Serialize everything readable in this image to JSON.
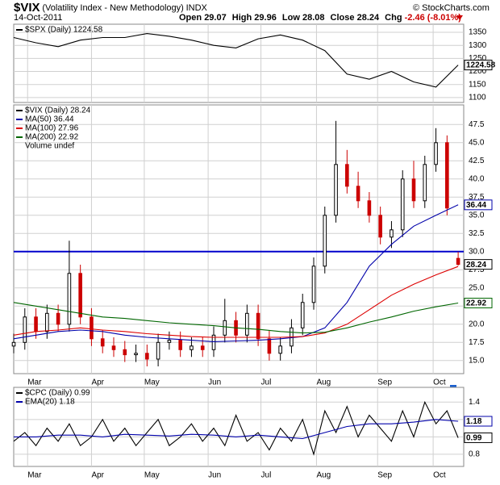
{
  "header": {
    "symbol": "$VIX",
    "description": "(Volatility Index - New Methodology)",
    "exchange": "INDX",
    "date": "14-Oct-2011",
    "open_label": "Open",
    "open": 29.07,
    "high_label": "High",
    "high": 29.96,
    "low_label": "Low",
    "low": 28.08,
    "close_label": "Close",
    "close": 28.24,
    "change_label": "Chg",
    "change": -2.46,
    "change_percent": "(-8.01%)",
    "copyright": "© StockCharts.com"
  },
  "chart_data": [
    {
      "type": "line",
      "xlim": [
        0,
        162
      ],
      "xticks": [
        5,
        28,
        47,
        70,
        89,
        109,
        131,
        151
      ],
      "ylim": [
        1081,
        1381
      ],
      "yticks": [
        1100,
        1150,
        1200,
        1250,
        1300,
        1350
      ],
      "grid": true,
      "series": [
        {
          "name": "$SPX (Daily) 1224.58",
          "color": "#000000",
          "last_box": true,
          "x": [
            0,
            8,
            16,
            24,
            32,
            40,
            48,
            56,
            64,
            72,
            80,
            88,
            96,
            104,
            112,
            120,
            128,
            136,
            144,
            152,
            160
          ],
          "values": [
            1330,
            1310,
            1295,
            1320,
            1330,
            1330,
            1345,
            1335,
            1320,
            1300,
            1290,
            1325,
            1340,
            1320,
            1280,
            1190,
            1170,
            1200,
            1160,
            1140,
            1224.58
          ]
        }
      ]
    },
    {
      "type": "candlestick",
      "xlim": [
        0,
        162
      ],
      "xticks": [
        {
          "value": 5,
          "label": "Mar"
        },
        {
          "value": 28,
          "label": "Apr"
        },
        {
          "value": 47,
          "label": "May"
        },
        {
          "value": 70,
          "label": "Jun"
        },
        {
          "value": 89,
          "label": "Jul"
        },
        {
          "value": 109,
          "label": "Aug"
        },
        {
          "value": 131,
          "label": "Sep"
        },
        {
          "value": 151,
          "label": "Oct"
        }
      ],
      "ylim": [
        13.2,
        50.2
      ],
      "yticks": [
        {
          "value": 15,
          "label": "15.0"
        },
        {
          "value": 17.5,
          "label": "17.5"
        },
        {
          "value": 20,
          "label": "20.0"
        },
        {
          "value": 22.5,
          "label": "22.5"
        },
        {
          "value": 25,
          "label": "25.0"
        },
        {
          "value": 27.5,
          "label": "27.5"
        },
        {
          "value": 30,
          "label": "30.0"
        },
        {
          "value": 32.5,
          "label": "32.5"
        },
        {
          "value": 35,
          "label": "35.0"
        },
        {
          "value": 37.5,
          "label": "37.5"
        },
        {
          "value": 40,
          "label": "40.0"
        },
        {
          "value": 42.5,
          "label": "42.5"
        },
        {
          "value": 45,
          "label": "45.0"
        },
        {
          "value": 47.5,
          "label": "47.5"
        }
      ],
      "grid": true,
      "hline": 30,
      "hline_color": "#0000cc",
      "volume_note": "Volume undef",
      "series": [
        {
          "name": "$VIX (Daily) 28.24",
          "color": "#000000",
          "down_color": "#cc0000",
          "last_box": true,
          "x": [
            0,
            4,
            8,
            12,
            16,
            20,
            24,
            28,
            32,
            36,
            40,
            44,
            48,
            52,
            56,
            60,
            64,
            68,
            72,
            76,
            80,
            84,
            88,
            92,
            96,
            100,
            104,
            108,
            112,
            116,
            120,
            124,
            128,
            132,
            136,
            140,
            144,
            148,
            152,
            156,
            160
          ],
          "open": [
            17,
            17.5,
            21,
            19,
            21.5,
            20,
            27,
            21,
            18,
            17,
            16.5,
            15.8,
            16,
            15.2,
            17.5,
            17.8,
            16.5,
            17,
            16.5,
            18.5,
            20.5,
            18.5,
            21.5,
            18,
            16,
            17,
            19.5,
            23,
            28,
            35,
            42,
            39,
            37,
            35,
            32,
            33,
            40,
            37,
            42,
            45,
            29.07
          ],
          "high": [
            18.7,
            22.2,
            22.2,
            22.7,
            22.7,
            31.5,
            28.2,
            22.2,
            19.2,
            18.2,
            17.7,
            17.2,
            17.2,
            18.7,
            19,
            19,
            18.2,
            18.2,
            19.7,
            23.5,
            21.7,
            22.7,
            22.7,
            19.2,
            18.2,
            20.7,
            24.2,
            29.2,
            36.2,
            48,
            44,
            41,
            38.2,
            36.2,
            34.2,
            41.2,
            42.5,
            43.2,
            47,
            46,
            29.96
          ],
          "low": [
            16,
            16.5,
            18,
            18,
            19,
            19,
            20,
            17,
            16,
            15.5,
            14.8,
            14.8,
            14.2,
            14.2,
            16.5,
            15.5,
            15.5,
            15.5,
            15.5,
            17.5,
            17.5,
            17.5,
            17,
            15,
            15,
            16,
            18.5,
            22,
            27,
            34,
            38,
            36,
            34,
            31,
            30.5,
            32,
            36,
            36,
            41,
            35,
            28.08
          ],
          "close": [
            17.5,
            21,
            19,
            21.5,
            20,
            27,
            21,
            18,
            17,
            16.5,
            15.8,
            16,
            15.2,
            17.5,
            17.8,
            16.5,
            17,
            16.5,
            18.5,
            20.5,
            18.5,
            21.5,
            18,
            16,
            17,
            19.5,
            23,
            28,
            35,
            42,
            39,
            37,
            35,
            32,
            33,
            40,
            37,
            42,
            45,
            36,
            28.24
          ]
        },
        {
          "name": "MA(50) 36.44",
          "color": "#0000aa",
          "last_box": true,
          "x": [
            0,
            8,
            16,
            24,
            32,
            40,
            48,
            56,
            64,
            72,
            80,
            88,
            96,
            104,
            112,
            120,
            128,
            136,
            144,
            152,
            160
          ],
          "values": [
            18,
            18.5,
            19,
            19.2,
            19,
            18.5,
            18.2,
            18,
            17.8,
            17.6,
            17.7,
            17.8,
            18,
            18.3,
            19.5,
            23,
            28,
            31,
            33.5,
            35,
            36.44
          ]
        },
        {
          "name": "MA(100) 27.96",
          "color": "#dd0000",
          "x": [
            0,
            8,
            16,
            24,
            32,
            40,
            48,
            56,
            64,
            72,
            80,
            88,
            96,
            104,
            112,
            120,
            128,
            136,
            144,
            152,
            160
          ],
          "values": [
            18.5,
            19,
            19.2,
            19.5,
            19.2,
            19,
            18.7,
            18.5,
            18.3,
            18.2,
            18.2,
            18.2,
            18.2,
            18.3,
            18.8,
            20,
            22,
            24,
            25.5,
            26.8,
            27.96
          ]
        },
        {
          "name": "MA(200) 22.92",
          "color": "#006600",
          "last_box": true,
          "x": [
            0,
            8,
            16,
            24,
            32,
            40,
            48,
            56,
            64,
            72,
            80,
            88,
            96,
            104,
            112,
            120,
            128,
            136,
            144,
            152,
            160
          ],
          "values": [
            23,
            22.5,
            22,
            21.5,
            21,
            20.8,
            20.5,
            20.2,
            20,
            19.8,
            19.5,
            19.3,
            19,
            18.8,
            18.9,
            19.5,
            20.3,
            21,
            21.8,
            22.4,
            22.92
          ]
        }
      ]
    },
    {
      "type": "line",
      "xlim": [
        0,
        162
      ],
      "xticks": [
        {
          "value": 5,
          "label": "Mar"
        },
        {
          "value": 28,
          "label": "Apr"
        },
        {
          "value": 47,
          "label": "May"
        },
        {
          "value": 70,
          "label": "Jun"
        },
        {
          "value": 89,
          "label": "Jul"
        },
        {
          "value": 109,
          "label": "Aug"
        },
        {
          "value": 131,
          "label": "Sep"
        },
        {
          "value": 151,
          "label": "Oct"
        }
      ],
      "ylim": [
        0.66,
        1.57
      ],
      "yticks": [
        0.8,
        {
          "value": 1.0,
          "label": "1.0"
        },
        1.2,
        1.4
      ],
      "grid": true,
      "series": [
        {
          "name": "$CPC (Daily) 0.99",
          "color": "#000000",
          "last_box": true,
          "x": [
            0,
            4,
            8,
            12,
            16,
            20,
            24,
            28,
            32,
            36,
            40,
            44,
            48,
            52,
            56,
            60,
            64,
            68,
            72,
            76,
            80,
            84,
            88,
            92,
            96,
            100,
            104,
            108,
            112,
            116,
            120,
            124,
            128,
            132,
            136,
            140,
            144,
            148,
            152,
            156,
            160
          ],
          "values": [
            0.95,
            1.05,
            0.9,
            1.1,
            0.95,
            1.15,
            0.9,
            1.0,
            1.2,
            0.95,
            1.1,
            0.9,
            1.05,
            1.2,
            0.9,
            1.0,
            1.15,
            0.95,
            1.1,
            0.9,
            1.25,
            0.95,
            1.05,
            0.85,
            1.1,
            0.95,
            1.2,
            0.8,
            1.3,
            1.05,
            1.35,
            1.0,
            1.25,
            1.1,
            0.95,
            1.3,
            1.0,
            1.4,
            1.15,
            1.3,
            0.99
          ]
        },
        {
          "name": "EMA(20) 1.18",
          "color": "#0000aa",
          "last_box": true,
          "x": [
            0,
            8,
            16,
            24,
            32,
            40,
            48,
            56,
            64,
            72,
            80,
            88,
            96,
            104,
            112,
            120,
            128,
            136,
            144,
            152,
            160
          ],
          "values": [
            1.0,
            1.0,
            1.02,
            1.02,
            1.0,
            1.03,
            1.02,
            1.01,
            1.03,
            1.02,
            1.0,
            1.02,
            1.0,
            0.98,
            1.05,
            1.12,
            1.15,
            1.15,
            1.17,
            1.2,
            1.18
          ]
        }
      ]
    }
  ]
}
